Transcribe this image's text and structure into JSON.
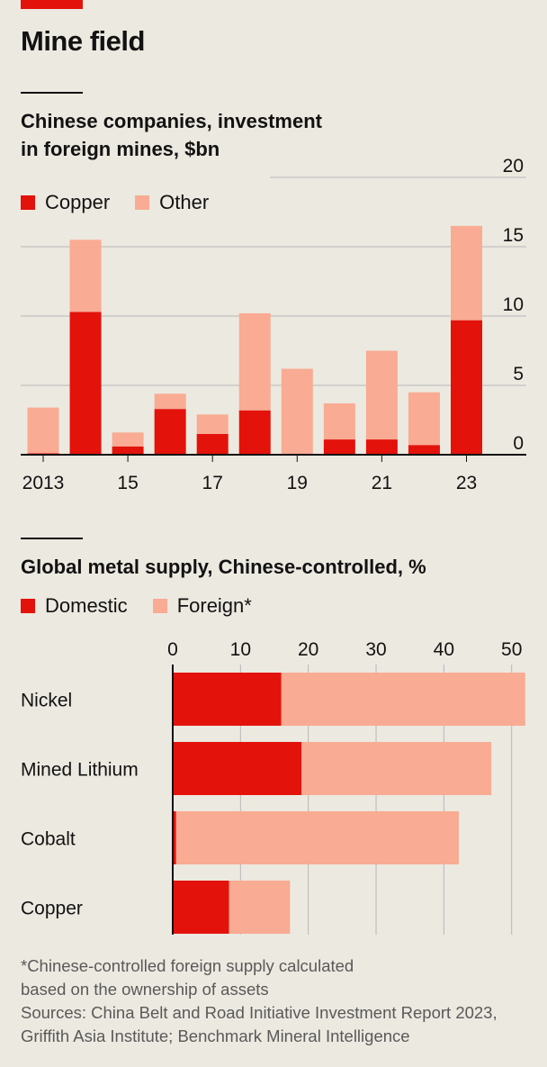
{
  "headline": "Mine field",
  "colors": {
    "primary": "#e3120b",
    "secondary": "#f9ab93",
    "grid": "#b7b7b7",
    "axis": "#121212"
  },
  "notes": {
    "footnote_line1": "*Chinese-controlled foreign supply calculated",
    "footnote_line2": "based on the ownership of assets",
    "sources_line1": "Sources: China Belt and Road Initiative Investment Report 2023,",
    "sources_line2": "Griffith Asia Institute; Benchmark Mineral Intelligence"
  },
  "chart_data": [
    {
      "type": "bar",
      "stacked": true,
      "orientation": "vertical",
      "title": "Chinese companies, investment in foreign mines, $bn",
      "title_line1": "Chinese companies, investment",
      "title_line2": "in foreign mines, $bn",
      "categories": [
        "2013",
        "2014",
        "2015",
        "2016",
        "2017",
        "2018",
        "2019",
        "2020",
        "2021",
        "2022",
        "2023"
      ],
      "x_tick_labels": [
        "2013",
        "",
        "15",
        "",
        "17",
        "",
        "19",
        "",
        "21",
        "",
        "23"
      ],
      "series": [
        {
          "name": "Copper",
          "values": [
            0.1,
            10.3,
            0.6,
            3.3,
            1.5,
            3.2,
            0.0,
            1.1,
            1.1,
            0.7,
            9.7
          ]
        },
        {
          "name": "Other",
          "values": [
            3.3,
            5.2,
            1.0,
            1.1,
            1.4,
            7.0,
            6.2,
            2.6,
            6.4,
            3.8,
            6.8
          ]
        }
      ],
      "y_ticks": [
        "0",
        "5",
        "10",
        "15",
        "20"
      ],
      "ylim": [
        0,
        20
      ],
      "y_axis_side": "right",
      "grid": true,
      "legend_position": "top-left"
    },
    {
      "type": "bar",
      "stacked": true,
      "orientation": "horizontal",
      "title": "Global metal supply, Chinese-controlled, %",
      "categories": [
        "Nickel",
        "Mined Lithium",
        "Cobalt",
        "Copper"
      ],
      "series": [
        {
          "name": "Domestic",
          "values": [
            16,
            19,
            0.5,
            8.3
          ]
        },
        {
          "name": "Foreign*",
          "values": [
            36,
            28,
            41.7,
            9
          ]
        }
      ],
      "x_ticks": [
        "0",
        "10",
        "20",
        "30",
        "40",
        "50"
      ],
      "xlim": [
        0,
        52
      ],
      "x_axis_side": "top",
      "grid": true,
      "legend_position": "top-left"
    }
  ]
}
